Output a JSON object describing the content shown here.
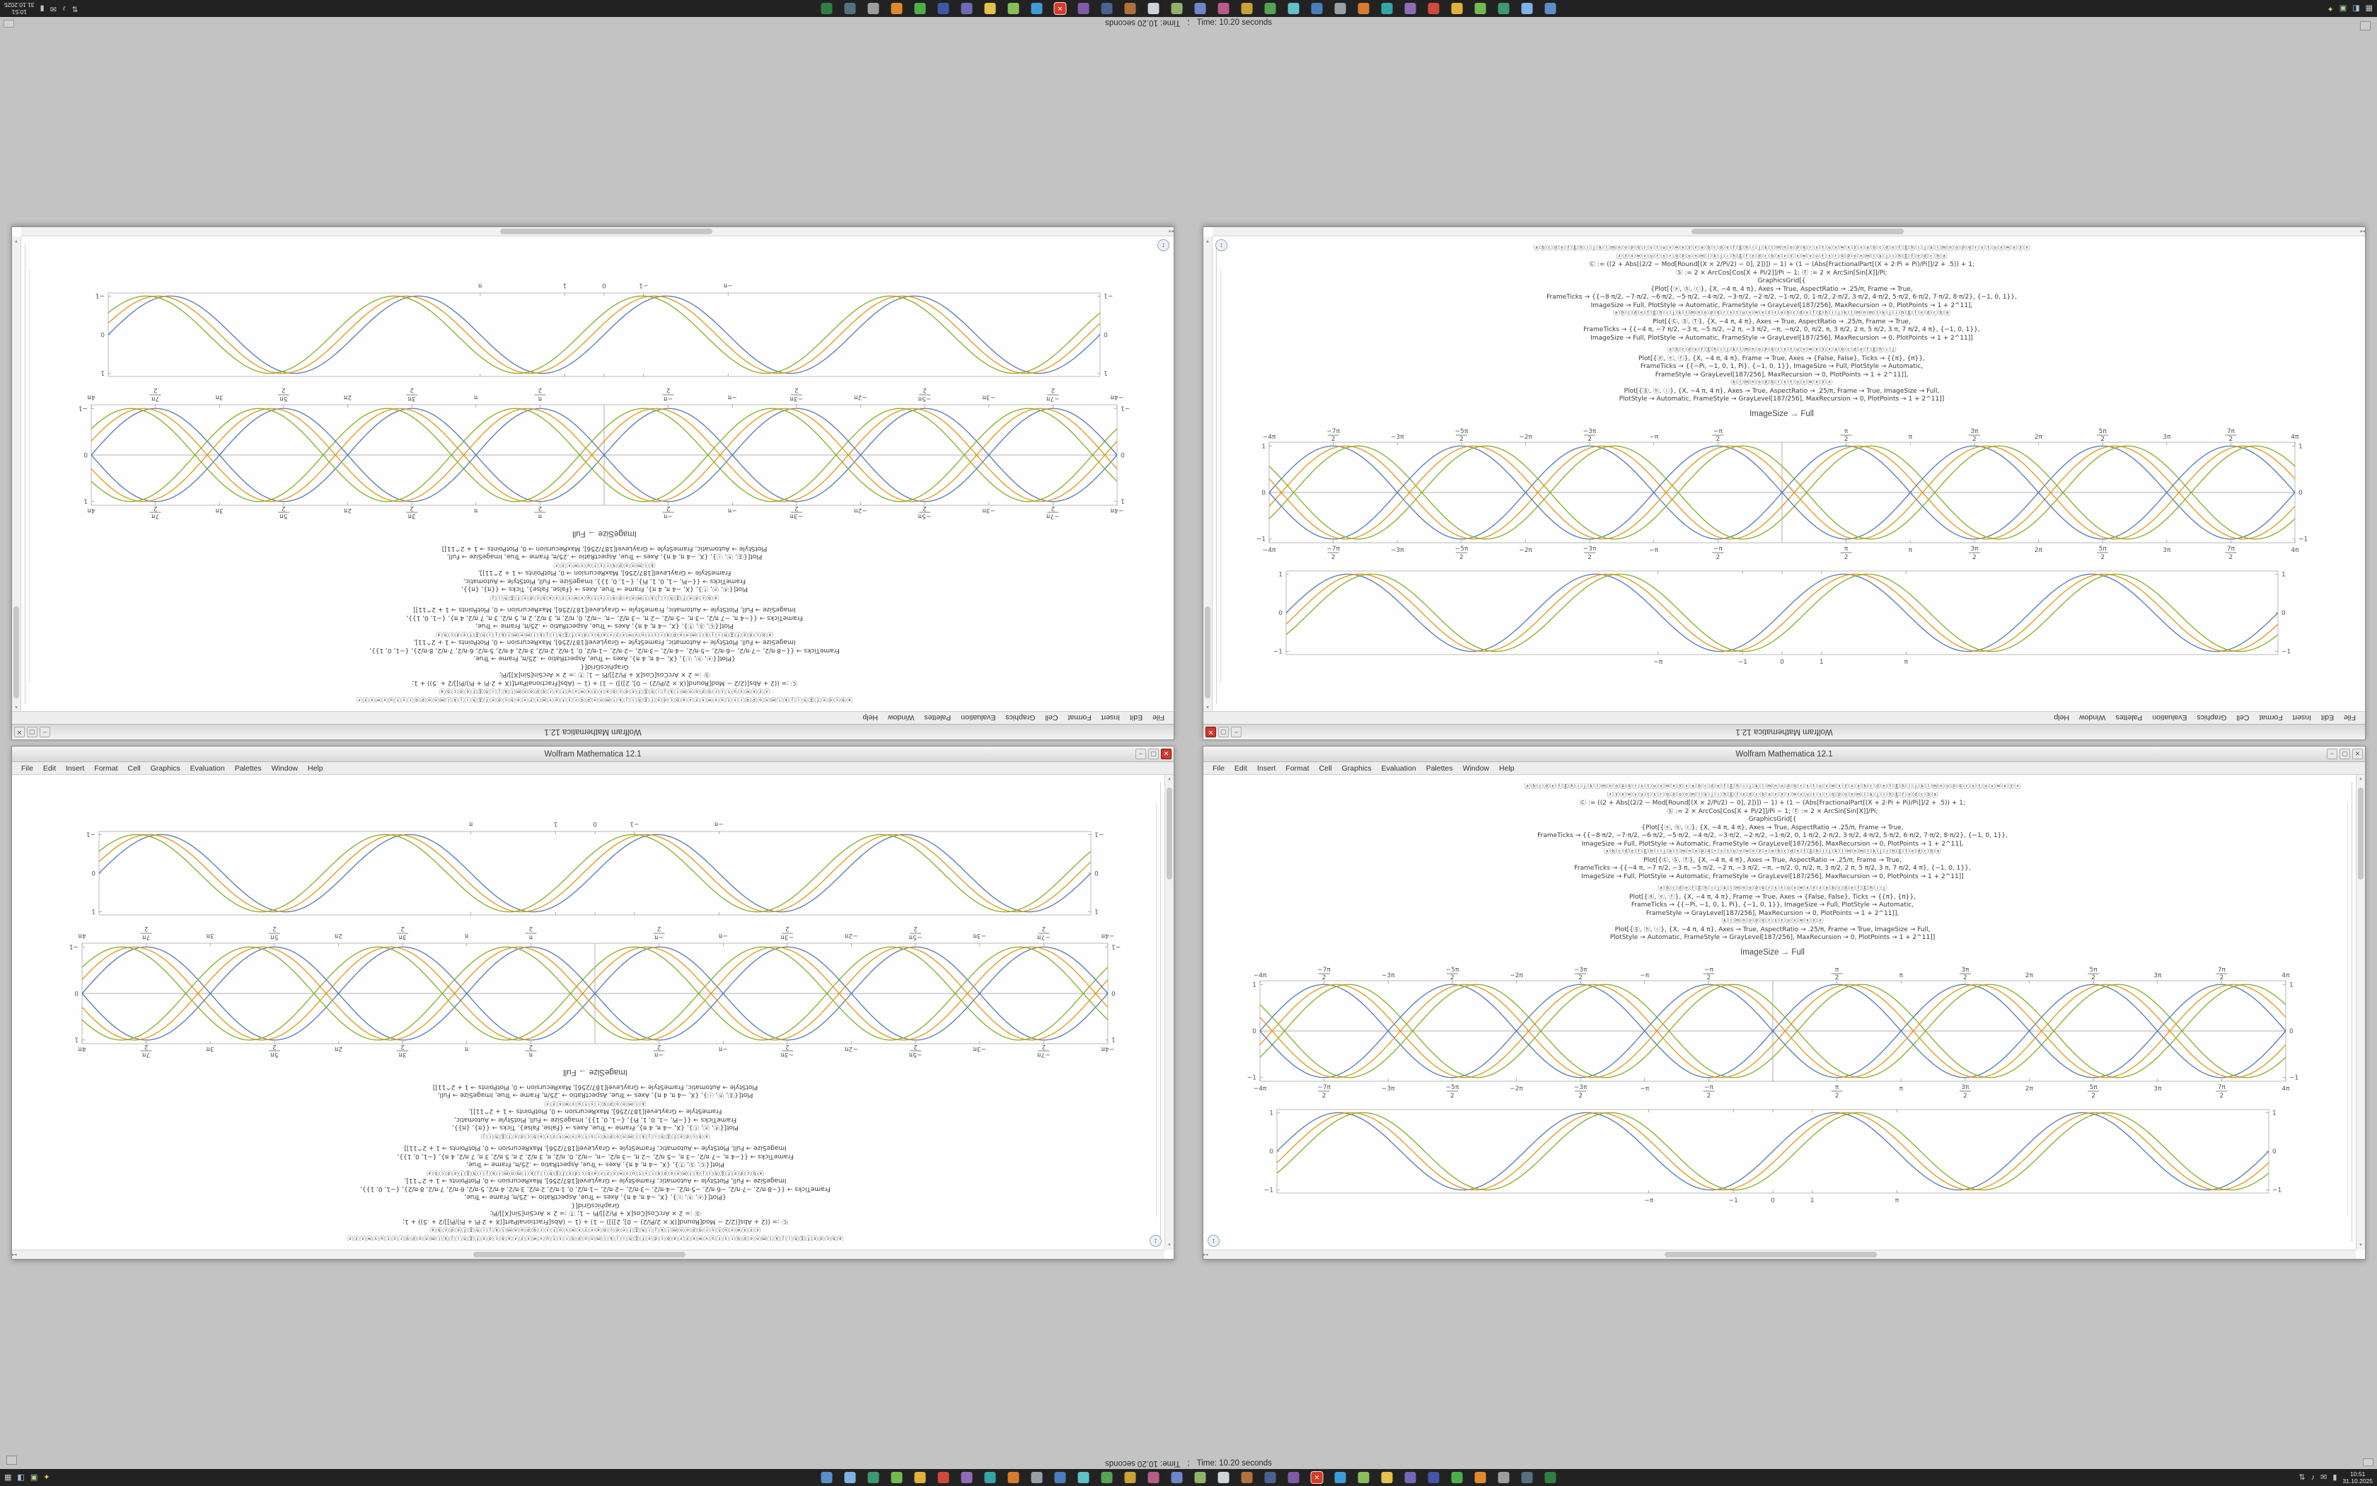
{
  "screen": {
    "status_time_text": "Time: 10.20 seconds",
    "status_separator": ";"
  },
  "window": {
    "title": "Wolfram Mathematica 12.1",
    "menu": [
      "File",
      "Edit",
      "Insert",
      "Format",
      "Cell",
      "Graphics",
      "Evaluation",
      "Palettes",
      "Window",
      "Help"
    ],
    "buttons": {
      "minimize": "−",
      "maximize": "▢",
      "close": "✕"
    }
  },
  "notebook": {
    "caption": "ImageSize → Full",
    "code_block_1": [
      "ⓐⓑⓒⓓⓔⓕⓖⓗⓘⓙⓚⓛⓜⓝⓞⓟⓠⓡⓢⓣⓤⓥⓦⓧⓨⓩⓐⓑⓒⓓⓔⓕⓖⓗⓘⓙⓚⓛⓜⓝⓞⓟⓠⓡⓢⓣⓤⓥⓦⓧⓨⓩⓐⓑⓒⓓⓔⓕⓖⓗⓘⓙⓚⓛⓜⓝⓞⓟⓠⓡⓢⓣⓤⓥⓦⓧⓨⓩ",
      "ⓩⓨⓧⓦⓥⓤⓣⓢⓡⓠⓟⓞⓝⓜⓛⓚⓙⓘⓗⓖⓕⓔⓓⓒⓑⓐⓩⓨⓧⓦⓥⓤⓣⓢⓡⓠⓟⓞⓝⓜⓛⓚⓙⓘⓗⓖⓕⓔⓓⓒⓑⓐ",
      "Ⓒ := ((2 + Abs[(2/2 − Mod[Round[(X × 2/Pi/2) − 0], 2])]) − 1) + (1 − (Abs[FractionalPart[(X + 2·Pi + Pi)/Pi]]/2 + .5)) + 1;",
      "Ⓢ := 2 × ArcCos[Cos[X + Pi/2]]/Pi − 1;    Ⓣ := 2 × ArcSin[Sin[X]]/Pi;",
      "GraphicsGrid[{",
      "{Plot[{ⓐ, ⓑ, ⓒ}, {X, −4 π, 4 π}, Axes → True, AspectRatio → .25/π, Frame → True,",
      "FrameTicks → {{−8·π/2, −7·π/2, −6·π/2, −5·π/2, −4·π/2, −3·π/2, −2·π/2, −1·π/2, 0, 1·π/2, 2·π/2, 3·π/2, 4·π/2, 5·π/2, 6·π/2, 7·π/2, 8·π/2}, {−1, 0, 1}},",
      "ImageSize → Full, PlotStyle → Automatic, FrameStyle → GrayLevel[187/256], MaxRecursion → 0, PlotPoints → 1 + 2^11],",
      "ⓐⓑⓒⓓⓔⓕⓖⓗⓘⓙⓚⓛⓜⓝⓞⓟⓠⓡⓢⓣⓤⓥⓦⓧⓨⓩⓐⓑⓒⓓⓔⓕⓖⓗⓘⓙⓚⓛⓜⓝⓜⓛⓚⓙⓘⓗⓖⓕⓔⓓⓒⓑⓐ",
      "Plot[{Ⓒ, Ⓢ, Ⓣ}, {X, −4 π, 4 π}, Axes → True, AspectRatio → .25/π, Frame → True,",
      "FrameTicks → {{−4 π, −7 π/2, −3 π, −5 π/2, −2 π, −3 π/2, −π, −π/2, 0, π/2, π, 3 π/2, 2 π, 5 π/2, 3 π, 7 π/2, 4 π}, {−1, 0, 1}},",
      "ImageSize → Full, PlotStyle → Automatic, FrameStyle → GrayLevel[187/256], MaxRecursion → 0, PlotPoints → 1 + 2^11]]"
    ],
    "code_block_2": [
      "ⓐⓑⓒⓓⓔⓕⓖⓗⓘⓙⓚⓛⓜⓝⓞⓟⓠⓡⓢⓣⓤⓥⓦⓧⓨⓩⓐⓑⓒⓓⓔⓕⓖⓗⓘⓙ",
      "Plot[{ⓓ, ⓔ, ⓕ}, {X, −4 π, 4 π}, Frame → True, Axes → {False, False}, Ticks → {{π}, {π}},",
      "FrameTicks → {{−Pi, −1, 0, 1, Pi}, {−1, 0, 1}}, ImageSize → Full, PlotStyle → Automatic,",
      "FrameStyle → GrayLevel[187/256], MaxRecursion → 0, PlotPoints → 1 + 2^11]],",
      "ⓚⓛⓜⓝⓞⓟⓠⓡⓢⓣⓤⓥⓦⓧⓨⓩ",
      "Plot[{ⓖ, ⓗ, ⓘ}, {X, −4 π, 4 π}, Axes → True, AspectRatio → .25/π, Frame → True, ImageSize → Full,",
      "PlotStyle → Automatic, FrameStyle → GrayLevel[187/256], MaxRecursion → 0, PlotPoints → 1 + 2^11]]"
    ]
  },
  "taskbar": {
    "left_icons": [
      {
        "name": "app-menu-icon",
        "glyph": "▦",
        "color": "#c9c9c9"
      },
      {
        "name": "workspaces-icon",
        "glyph": "◧",
        "color": "#a7c4de"
      },
      {
        "name": "terminal-icon",
        "glyph": "▣",
        "color": "#b3d39c"
      },
      {
        "name": "search-icon",
        "glyph": "✦",
        "color": "#e2c87d"
      }
    ],
    "app_icon_colors": [
      "#5b8fc9",
      "#7fb2e5",
      "#3d9970",
      "#74b94e",
      "#e0b23c",
      "#cf4a3a",
      "#8e6db8",
      "#35a5a5",
      "#d97b2e",
      "#9aa0a6",
      "#4a7dbd",
      "#62c0c9",
      "#57a356",
      "#c9a23a",
      "#b85c8a",
      "#6f87c7",
      "#8fb36b",
      "#cfd4d9",
      "#b0713f",
      "#49628f",
      "#7d5ba6",
      "#d63a2a",
      "#3f9bd8",
      "#88c057",
      "#e3c24d",
      "#7268b5",
      "#4156a6",
      "#4fae4c",
      "#e08a2e",
      "#9e9e9e",
      "#56707c",
      "#2f7e43"
    ],
    "highlight_index": 21,
    "tray_icons": [
      {
        "name": "network-icon",
        "glyph": "⇅"
      },
      {
        "name": "volume-icon",
        "glyph": "♪"
      },
      {
        "name": "mail-icon",
        "glyph": "✉"
      },
      {
        "name": "battery-icon",
        "glyph": "▮"
      }
    ],
    "clock_time": "10:51",
    "clock_date": "31.10.2025"
  },
  "chart_data": [
    {
      "id": "phase-waves-axes-plot",
      "type": "line",
      "title": "ImageSize → Full",
      "functions": "y = ±sin(x − φ), φ ∈ {0, 0.3, 0.6}",
      "x_range": [
        -12.566,
        12.566
      ],
      "y_range": [
        -1.08,
        1.08
      ],
      "frame": true,
      "axes": true,
      "frame_color": "#bbbbbb",
      "x_label_mode": "both",
      "margins": [
        40,
        24,
        40,
        30
      ],
      "x_ticks": [
        {
          "l": "−4π",
          "v": -12.566
        },
        {
          "l": "−7π/2",
          "v": -10.996
        },
        {
          "l": "−3π",
          "v": -9.425
        },
        {
          "l": "−5π/2",
          "v": -7.854
        },
        {
          "l": "−2π",
          "v": -6.283
        },
        {
          "l": "−3π/2",
          "v": -4.712
        },
        {
          "l": "−π",
          "v": -3.142
        },
        {
          "l": "−π/2",
          "v": -1.571
        },
        {
          "l": "π/2",
          "v": 1.571
        },
        {
          "l": "π",
          "v": 3.142
        },
        {
          "l": "3π/2",
          "v": 4.712
        },
        {
          "l": "2π",
          "v": 6.283
        },
        {
          "l": "5π/2",
          "v": 7.854
        },
        {
          "l": "3π",
          "v": 9.425
        },
        {
          "l": "7π/2",
          "v": 10.996
        },
        {
          "l": "4π",
          "v": 12.566
        }
      ],
      "y_ticks": [
        {
          "l": "1",
          "v": 1
        },
        {
          "l": "0",
          "v": 0
        },
        {
          "l": "−1",
          "v": -1
        }
      ],
      "series": [
        {
          "name": "sin(x)",
          "sign": 1,
          "phase": 0,
          "color": "#5e81b5"
        },
        {
          "name": "sin(x−0.3)",
          "sign": 1,
          "phase": 0.3,
          "color": "#e19c24"
        },
        {
          "name": "sin(x−0.6)",
          "sign": 1,
          "phase": 0.6,
          "color": "#8fb032"
        },
        {
          "name": "−sin(x)",
          "sign": -1,
          "phase": 0,
          "color": "#5e81b5"
        },
        {
          "name": "−sin(x−0.3)",
          "sign": -1,
          "phase": 0.3,
          "color": "#e19c24"
        },
        {
          "name": "−sin(x−0.6)",
          "sign": -1,
          "phase": 0.6,
          "color": "#8fb032"
        }
      ]
    },
    {
      "id": "phase-waves-framed-plot",
      "type": "line",
      "title": "",
      "functions": "y = sin(x − φ), φ ∈ {0, 0.3, 0.6}",
      "x_range": [
        -12.566,
        12.566
      ],
      "y_range": [
        -1.08,
        1.08
      ],
      "frame": true,
      "axes": false,
      "frame_color": "#bbbbbb",
      "x_label_mode": "bottom",
      "margins": [
        64,
        10,
        64,
        24
      ],
      "x_ticks": [
        {
          "l": "−π",
          "v": -3.142
        },
        {
          "l": "−1",
          "v": -1
        },
        {
          "l": "0",
          "v": 0
        },
        {
          "l": "1",
          "v": 1
        },
        {
          "l": "π",
          "v": 3.142
        }
      ],
      "y_ticks": [
        {
          "l": "1",
          "v": 1
        },
        {
          "l": "0",
          "v": 0
        },
        {
          "l": "−1",
          "v": -1
        }
      ],
      "series": [
        {
          "name": "sin(x)",
          "sign": 1,
          "phase": 0,
          "color": "#5e81b5"
        },
        {
          "name": "sin(x−0.3)",
          "sign": 1,
          "phase": 0.3,
          "color": "#e19c24"
        },
        {
          "name": "sin(x−0.6)",
          "sign": 1,
          "phase": 0.6,
          "color": "#8fb032"
        }
      ]
    }
  ]
}
